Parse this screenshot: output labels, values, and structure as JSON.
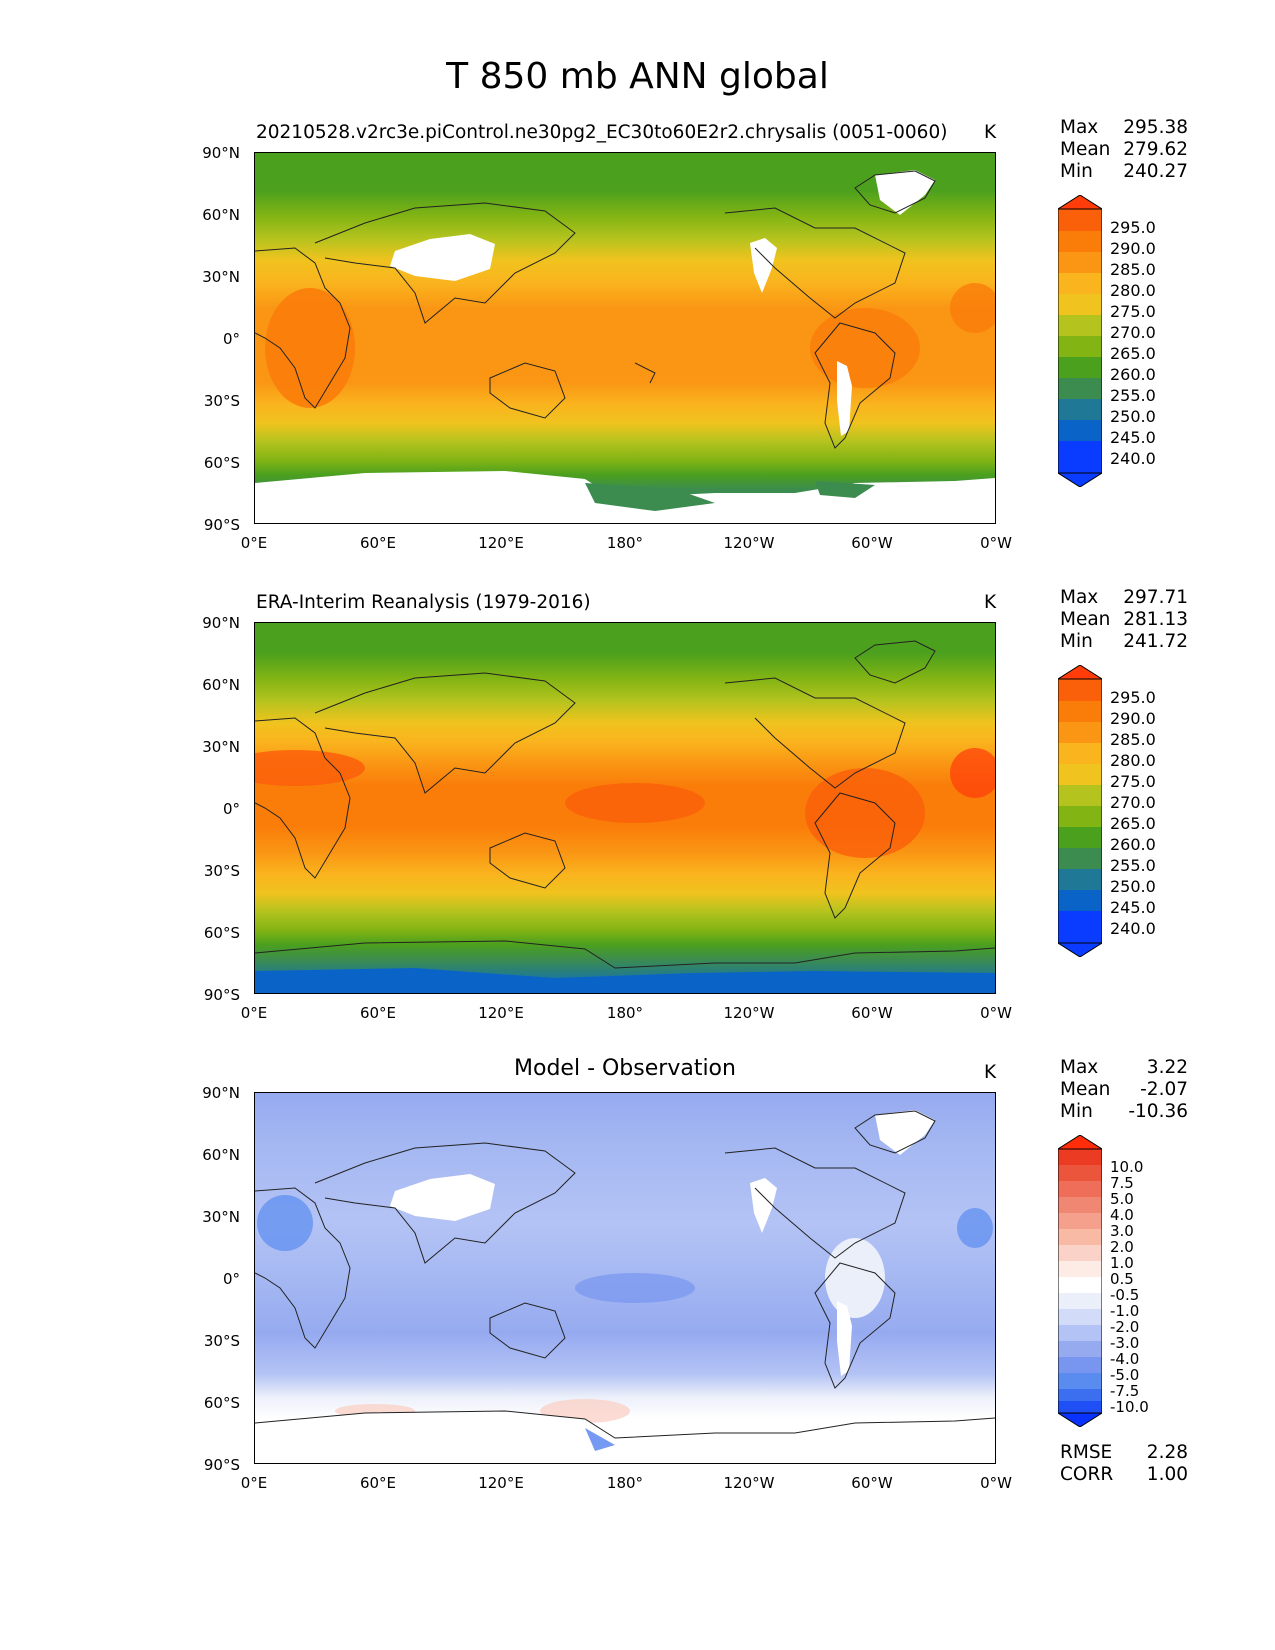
{
  "figure": {
    "title": "T 850 mb ANN global"
  },
  "axes": {
    "y_ticks": [
      "90°N",
      "60°N",
      "30°N",
      "0°",
      "30°S",
      "60°S",
      "90°S"
    ],
    "x_ticks": [
      "0°E",
      "60°E",
      "120°E",
      "180°",
      "120°W",
      "60°W",
      "0°W"
    ]
  },
  "colors": {
    "abs_scale": [
      "#0a3cff",
      "#0a64c8",
      "#1e7896",
      "#3c8c50",
      "#4ba01e",
      "#82b414",
      "#b4c31e",
      "#f0c31e",
      "#fab41e",
      "#fa9614",
      "#fa7d0a",
      "#fa5f0a",
      "#ff3c0a"
    ],
    "diff_scale": [
      "#0a32ff",
      "#1e50f5",
      "#3c6ef0",
      "#5a8cf0",
      "#7896f0",
      "#96aaf0",
      "#b4c3f5",
      "#d2dcf8",
      "#ebeffa",
      "#ffffff",
      "#fdebe6",
      "#fad2c8",
      "#f8b9a5",
      "#f5a08c",
      "#f08773",
      "#ee6e5a",
      "#eb553c",
      "#eb3c23",
      "#ff2d0a"
    ],
    "land_mask": "#ffffff",
    "coastline": "#222222"
  },
  "panels": [
    {
      "id": "test",
      "title": "20210528.v2rc3e.piControl.ne30pg2_EC30to60E2r2.chrysalis (0051-0060)",
      "units": "K",
      "stats": [
        {
          "label": "Max",
          "value": "295.38"
        },
        {
          "label": "Mean",
          "value": "279.62"
        },
        {
          "label": "Min",
          "value": "240.27"
        }
      ],
      "colorbar_ticks": [
        "295.0",
        "290.0",
        "285.0",
        "280.0",
        "275.0",
        "270.0",
        "265.0",
        "260.0",
        "255.0",
        "250.0",
        "245.0",
        "240.0"
      ]
    },
    {
      "id": "reference",
      "title": "ERA-Interim Reanalysis (1979-2016)",
      "units": "K",
      "stats": [
        {
          "label": "Max",
          "value": "297.71"
        },
        {
          "label": "Mean",
          "value": "281.13"
        },
        {
          "label": "Min",
          "value": "241.72"
        }
      ],
      "colorbar_ticks": [
        "295.0",
        "290.0",
        "285.0",
        "280.0",
        "275.0",
        "270.0",
        "265.0",
        "260.0",
        "255.0",
        "250.0",
        "245.0",
        "240.0"
      ]
    },
    {
      "id": "difference",
      "title": "Model - Observation",
      "units": "K",
      "stats": [
        {
          "label": "Max",
          "value": "3.22"
        },
        {
          "label": "Mean",
          "value": "-2.07"
        },
        {
          "label": "Min",
          "value": "-10.36"
        }
      ],
      "colorbar_ticks": [
        "10.0",
        "7.5",
        "5.0",
        "4.0",
        "3.0",
        "2.0",
        "1.0",
        "0.5",
        "-0.5",
        "-1.0",
        "-2.0",
        "-3.0",
        "-4.0",
        "-5.0",
        "-7.5",
        "-10.0"
      ],
      "extra_stats": [
        {
          "label": "RMSE",
          "value": "2.28"
        },
        {
          "label": "CORR",
          "value": "1.00"
        }
      ]
    }
  ]
}
